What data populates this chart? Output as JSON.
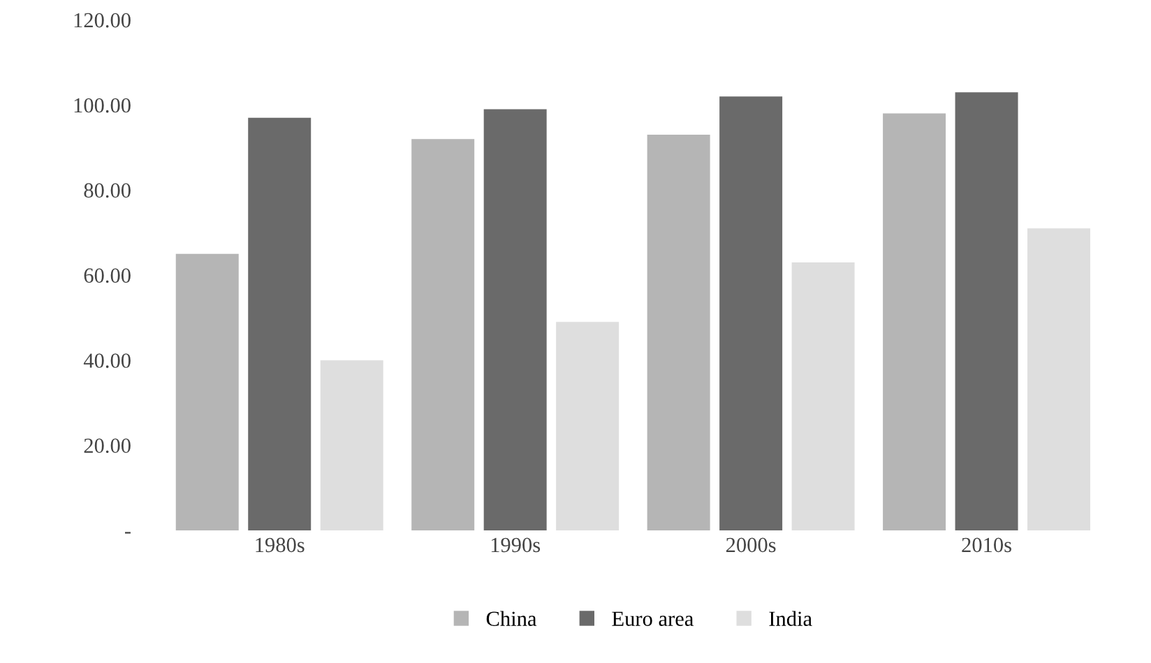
{
  "chart_data": {
    "type": "bar",
    "categories": [
      "1980s",
      "1990s",
      "2000s",
      "2010s"
    ],
    "series": [
      {
        "name": "China",
        "color": "#b5b5b5",
        "values": [
          65,
          92,
          93,
          98
        ]
      },
      {
        "name": "Euro area",
        "color": "#6a6a6a",
        "values": [
          97,
          99,
          102,
          103
        ]
      },
      {
        "name": "India",
        "color": "#dedede",
        "values": [
          40,
          49,
          63,
          71
        ]
      }
    ],
    "ylim": [
      0,
      120
    ],
    "yticks": [
      {
        "value": 0,
        "label": "-"
      },
      {
        "value": 20,
        "label": "20.00"
      },
      {
        "value": 40,
        "label": "40.00"
      },
      {
        "value": 60,
        "label": "60.00"
      },
      {
        "value": 80,
        "label": "80.00"
      },
      {
        "value": 100,
        "label": "100.00"
      },
      {
        "value": 120,
        "label": "120.00"
      }
    ],
    "grid": false,
    "legend": "bottom"
  }
}
